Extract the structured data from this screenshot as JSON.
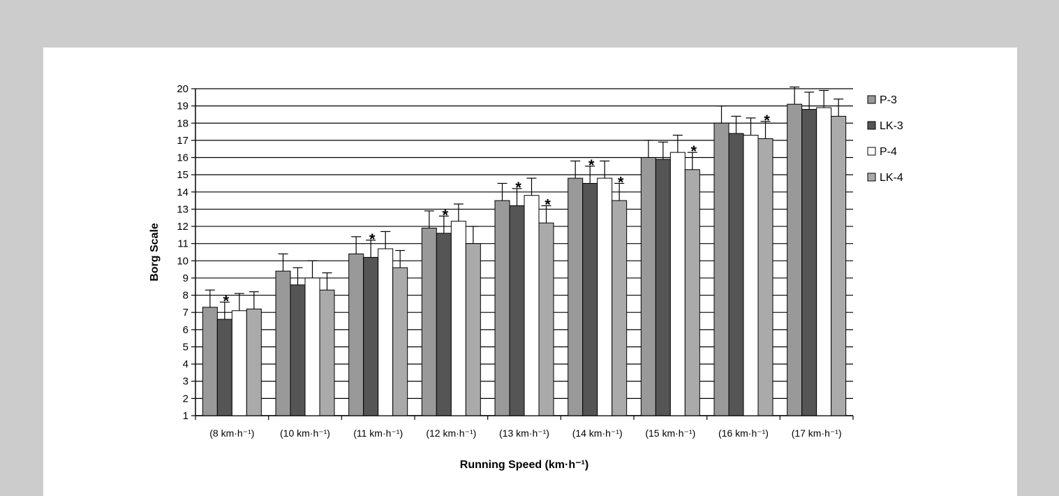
{
  "chart_data": {
    "type": "bar",
    "title": "",
    "xlabel": "Running Speed (km·h⁻¹)",
    "ylabel": "Borg Scale",
    "ylim": [
      1,
      20
    ],
    "yticks": [
      1,
      2,
      3,
      4,
      5,
      6,
      7,
      8,
      9,
      10,
      11,
      12,
      13,
      14,
      15,
      16,
      17,
      18,
      19,
      20
    ],
    "grid": "horizontal",
    "legend_position": "right",
    "categories": [
      "(8 km·h⁻¹)",
      "(10 km·h⁻¹)",
      "(11 km·h⁻¹)",
      "(12 km·h⁻¹)",
      "(13 km·h⁻¹)",
      "(14 km·h⁻¹)",
      "(15 km·h⁻¹)",
      "(16 km·h⁻¹)",
      "(17 km·h⁻¹)"
    ],
    "series": [
      {
        "name": "P-3",
        "color": "#999999",
        "values": [
          7.3,
          9.4,
          10.4,
          11.9,
          13.5,
          14.8,
          16.0,
          18.0,
          19.1
        ],
        "errors": [
          1.0,
          1.0,
          1.0,
          1.0,
          1.0,
          1.0,
          1.0,
          1.0,
          1.0
        ]
      },
      {
        "name": "LK-3",
        "color": "#555555",
        "values": [
          6.6,
          8.6,
          10.2,
          11.6,
          13.2,
          14.5,
          15.9,
          17.4,
          18.8
        ],
        "errors": [
          1.0,
          1.0,
          1.0,
          1.0,
          1.0,
          1.0,
          1.0,
          1.0,
          1.0
        ]
      },
      {
        "name": "P-4",
        "color": "#ffffff",
        "values": [
          7.1,
          9.0,
          10.7,
          12.3,
          13.8,
          14.8,
          16.3,
          17.3,
          18.9
        ],
        "errors": [
          1.0,
          1.0,
          1.0,
          1.0,
          1.0,
          1.0,
          1.0,
          1.0,
          1.0
        ]
      },
      {
        "name": "LK-4",
        "color": "#aaaaaa",
        "values": [
          7.2,
          8.3,
          9.6,
          11.0,
          12.2,
          13.5,
          15.3,
          17.1,
          18.4
        ],
        "errors": [
          1.0,
          1.0,
          1.0,
          1.0,
          1.0,
          1.0,
          1.0,
          1.0,
          1.0
        ]
      }
    ],
    "significance_marker": "*",
    "significance": [
      {
        "category": 0,
        "series": 1
      },
      {
        "category": 2,
        "series": 1
      },
      {
        "category": 3,
        "series": 1
      },
      {
        "category": 4,
        "series": 1
      },
      {
        "category": 4,
        "series": 3
      },
      {
        "category": 5,
        "series": 1
      },
      {
        "category": 5,
        "series": 3
      },
      {
        "category": 6,
        "series": 3
      },
      {
        "category": 7,
        "series": 3
      }
    ]
  }
}
